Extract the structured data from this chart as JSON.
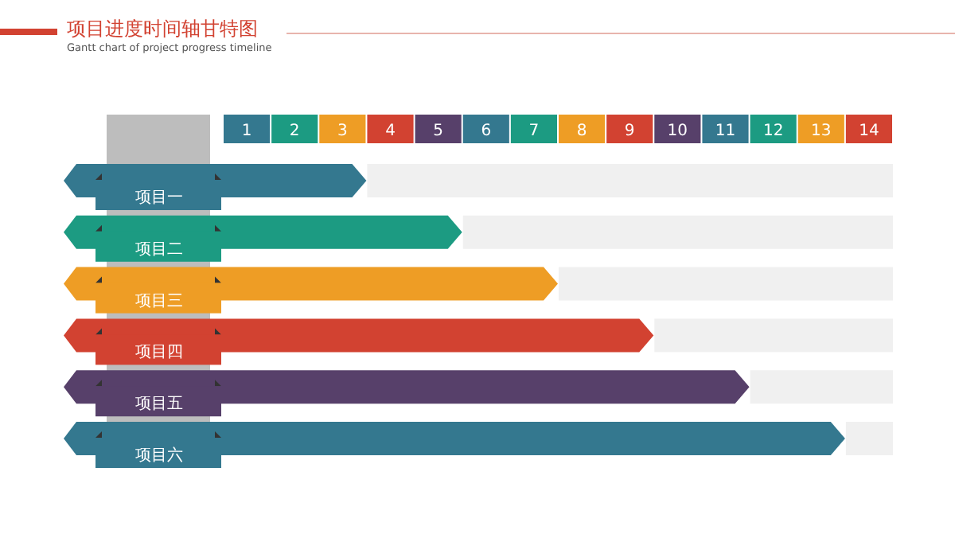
{
  "chart_data": {
    "type": "bar",
    "orientation": "horizontal",
    "stacked": true,
    "title": "项目进度时间轴甘特图",
    "subtitle": "Gantt chart of project progress timeline",
    "categories": [
      "项目一",
      "项目二",
      "项目三",
      "项目四",
      "项目五",
      "项目六"
    ],
    "series": [
      {
        "colors": [
          "#34788f",
          "#1c9b82",
          "#ee9d25",
          "#d24231",
          "#57406a",
          "#34788f"
        ],
        "values": [
          3,
          5,
          7,
          9,
          11,
          13
        ]
      },
      {
        "color": "#f0f0f0",
        "values": [
          11,
          9,
          7,
          5,
          3,
          1
        ]
      }
    ],
    "xlim": [
      0,
      14
    ],
    "xticks": [
      {
        "value": 0.5,
        "label": "1"
      },
      {
        "value": 1.5,
        "label": "2"
      },
      {
        "value": 2.5,
        "label": "3"
      },
      {
        "value": 3.5,
        "label": "4"
      },
      {
        "value": 4.5,
        "label": "5"
      },
      {
        "value": 5.5,
        "label": "6"
      },
      {
        "value": 6.5,
        "label": "7"
      },
      {
        "value": 7.5,
        "label": "8"
      },
      {
        "value": 8.5,
        "label": "9"
      },
      {
        "value": 9.5,
        "label": "10"
      },
      {
        "value": 10.5,
        "label": "11"
      },
      {
        "value": 11.5,
        "label": "12"
      },
      {
        "value": 12.5,
        "label": "13"
      },
      {
        "value": 13.5,
        "label": "14"
      }
    ]
  }
}
